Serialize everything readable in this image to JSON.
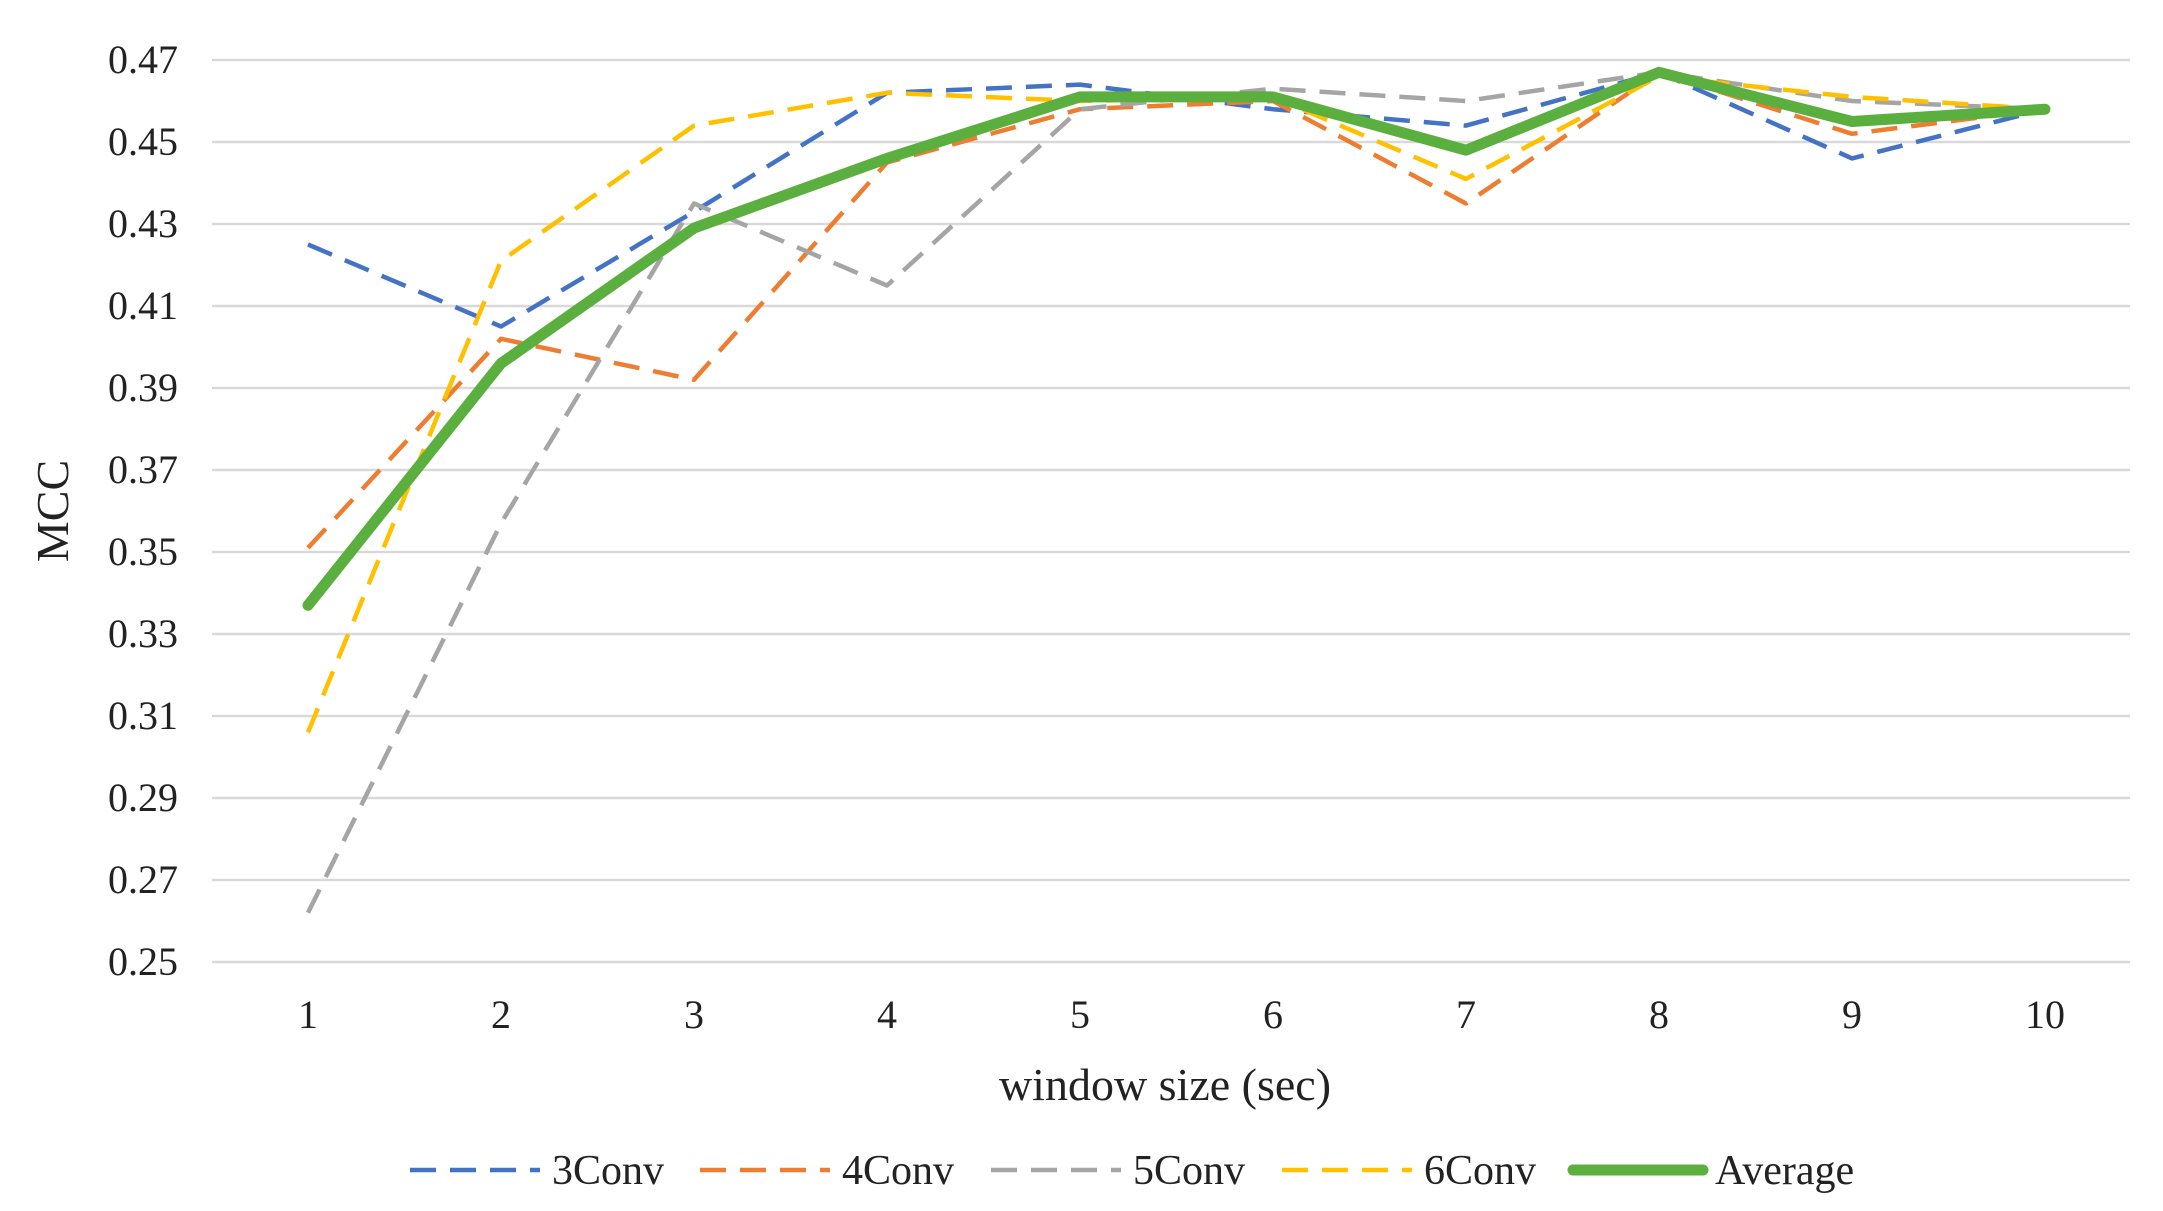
{
  "chart_data": {
    "type": "line",
    "title": "",
    "xlabel": "window size (sec)",
    "ylabel": "MCC",
    "categories": [
      "1",
      "2",
      "3",
      "4",
      "5",
      "6",
      "7",
      "8",
      "9",
      "10"
    ],
    "ylim": [
      0.25,
      0.47
    ],
    "yticks": [
      "0.25",
      "0.27",
      "0.29",
      "0.31",
      "0.33",
      "0.35",
      "0.37",
      "0.39",
      "0.41",
      "0.43",
      "0.45",
      "0.47"
    ],
    "grid": "horizontal",
    "legend_position": "bottom",
    "series": [
      {
        "name": "3Conv",
        "color": "#4472C4",
        "style": "dashed",
        "values": [
          0.425,
          0.405,
          0.433,
          0.462,
          0.464,
          0.458,
          0.454,
          0.467,
          0.446,
          0.458
        ]
      },
      {
        "name": "4Conv",
        "color": "#ED7D31",
        "style": "dashed",
        "values": [
          0.351,
          0.402,
          0.392,
          0.445,
          0.458,
          0.46,
          0.435,
          0.467,
          0.452,
          0.458
        ]
      },
      {
        "name": "5Conv",
        "color": "#A5A5A5",
        "style": "dashed",
        "values": [
          0.262,
          0.357,
          0.435,
          0.415,
          0.458,
          0.463,
          0.46,
          0.467,
          0.46,
          0.458
        ]
      },
      {
        "name": "6Conv",
        "color": "#FFC000",
        "style": "dashed",
        "values": [
          0.306,
          0.421,
          0.454,
          0.462,
          0.46,
          0.461,
          0.441,
          0.466,
          0.461,
          0.458
        ]
      },
      {
        "name": "Average",
        "color": "#5BAF3F",
        "style": "solid",
        "values": [
          0.337,
          0.396,
          0.429,
          0.446,
          0.461,
          0.461,
          0.448,
          0.467,
          0.455,
          0.458
        ]
      }
    ]
  }
}
